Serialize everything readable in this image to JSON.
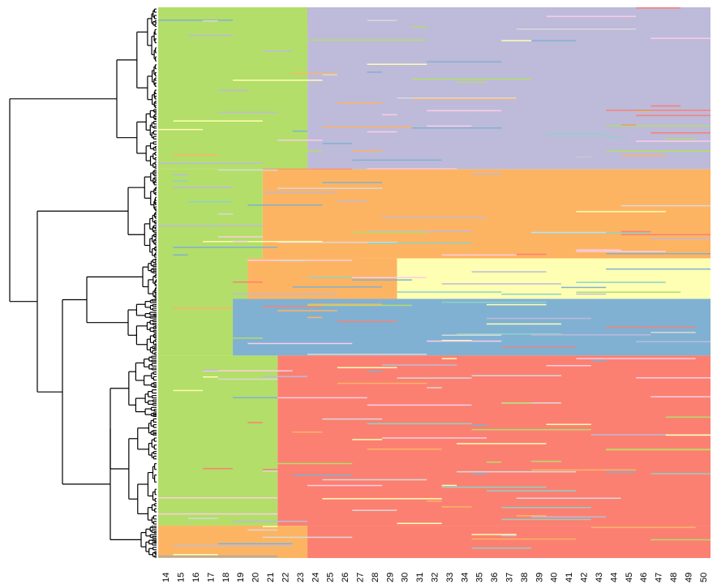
{
  "chart_data": {
    "type": "heatmap",
    "title": "",
    "xlabel": "",
    "ylabel": "",
    "x_ticks": [
      "14",
      "15",
      "16",
      "17",
      "18",
      "19",
      "20",
      "21",
      "22",
      "23",
      "24",
      "25",
      "26",
      "27",
      "28",
      "29",
      "30",
      "31",
      "32",
      "33",
      "34",
      "35",
      "36",
      "37",
      "38",
      "39",
      "40",
      "41",
      "42",
      "43",
      "44",
      "45",
      "46",
      "47",
      "48",
      "49",
      "50"
    ],
    "states": [
      {
        "name": "green",
        "color": "#B3DE69"
      },
      {
        "name": "purple",
        "color": "#BEBADA"
      },
      {
        "name": "orange",
        "color": "#FDB462"
      },
      {
        "name": "salmon",
        "color": "#FB8072"
      },
      {
        "name": "blue",
        "color": "#80B1D3"
      },
      {
        "name": "yellow",
        "color": "#FFFFB3"
      },
      {
        "name": "grey",
        "color": "#D9D9D9"
      },
      {
        "name": "teal",
        "color": "#8DD3C7"
      },
      {
        "name": "pink",
        "color": "#FCCDE5"
      }
    ],
    "dendrogram": {
      "orientation": "left",
      "top_level_clusters": 6
    },
    "clusters": [
      {
        "rows": 200,
        "segments": [
          [
            "salmon",
            14,
            27,
            0.12
          ],
          [
            "green",
            14,
            24,
            1.0
          ],
          [
            "purple",
            24,
            51,
            1.0
          ]
        ]
      },
      {
        "rows": 110,
        "segments": [
          [
            "green",
            14,
            21,
            1.0
          ],
          [
            "orange",
            21,
            51,
            1.0
          ]
        ]
      },
      {
        "rows": 50,
        "segments": [
          [
            "green",
            14,
            20,
            1.0
          ],
          [
            "orange",
            20,
            30,
            1.0
          ],
          [
            "yellow",
            30,
            51,
            1.0
          ]
        ]
      },
      {
        "rows": 70,
        "segments": [
          [
            "green",
            14,
            19,
            1.0
          ],
          [
            "blue",
            19,
            51,
            1.0
          ]
        ]
      },
      {
        "rows": 210,
        "segments": [
          [
            "green",
            14,
            22,
            1.0
          ],
          [
            "salmon",
            22,
            51,
            1.0
          ]
        ]
      },
      {
        "rows": 40,
        "segments": [
          [
            "orange",
            14,
            24,
            1.0
          ],
          [
            "salmon",
            24,
            51,
            1.0
          ]
        ]
      }
    ]
  }
}
